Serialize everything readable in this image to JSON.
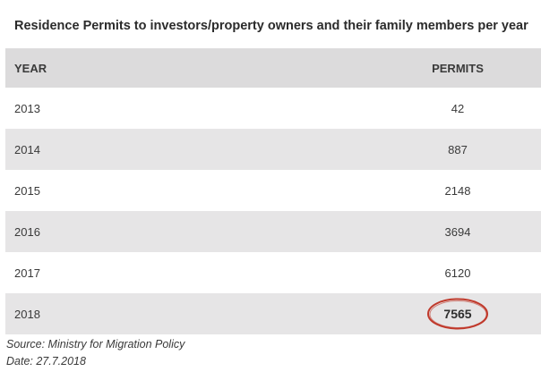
{
  "title": "Residence Permits to investors/property owners and their family members per year",
  "table": {
    "headers": {
      "year": "YEAR",
      "permits": "PERMITS"
    },
    "rows": [
      {
        "year": "2013",
        "permits": "42"
      },
      {
        "year": "2014",
        "permits": "887"
      },
      {
        "year": "2015",
        "permits": "2148"
      },
      {
        "year": "2016",
        "permits": "3694"
      },
      {
        "year": "2017",
        "permits": "6120"
      },
      {
        "year": "2018",
        "permits": "7565"
      }
    ],
    "highlighted_row_year": "2018",
    "highlight_color": "#c0392b"
  },
  "footer": {
    "source": "Source: Ministry for Migration Policy",
    "date": "Date: 27.7.2018"
  },
  "colors": {
    "header_bg": "#dcdbdc",
    "stripe_bg": "#e6e5e6",
    "text": "#3a3a3a"
  }
}
